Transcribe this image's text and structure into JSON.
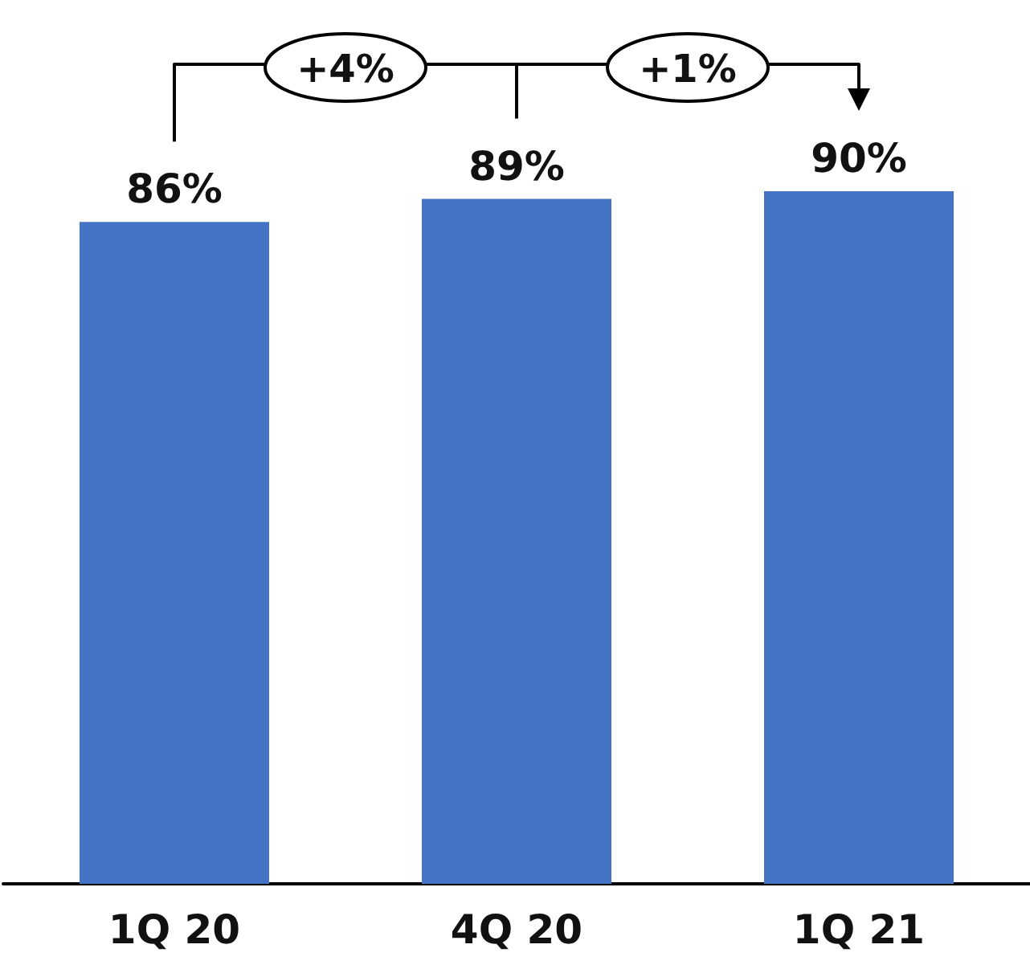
{
  "chart_data": {
    "type": "bar",
    "categories": [
      "1Q 20",
      "4Q 20",
      "1Q 21"
    ],
    "values": [
      86,
      89,
      90
    ],
    "value_labels": [
      "86%",
      "89%",
      "90%"
    ],
    "color": "#4472c4",
    "annotations": [
      "+4%",
      "+1%"
    ]
  }
}
